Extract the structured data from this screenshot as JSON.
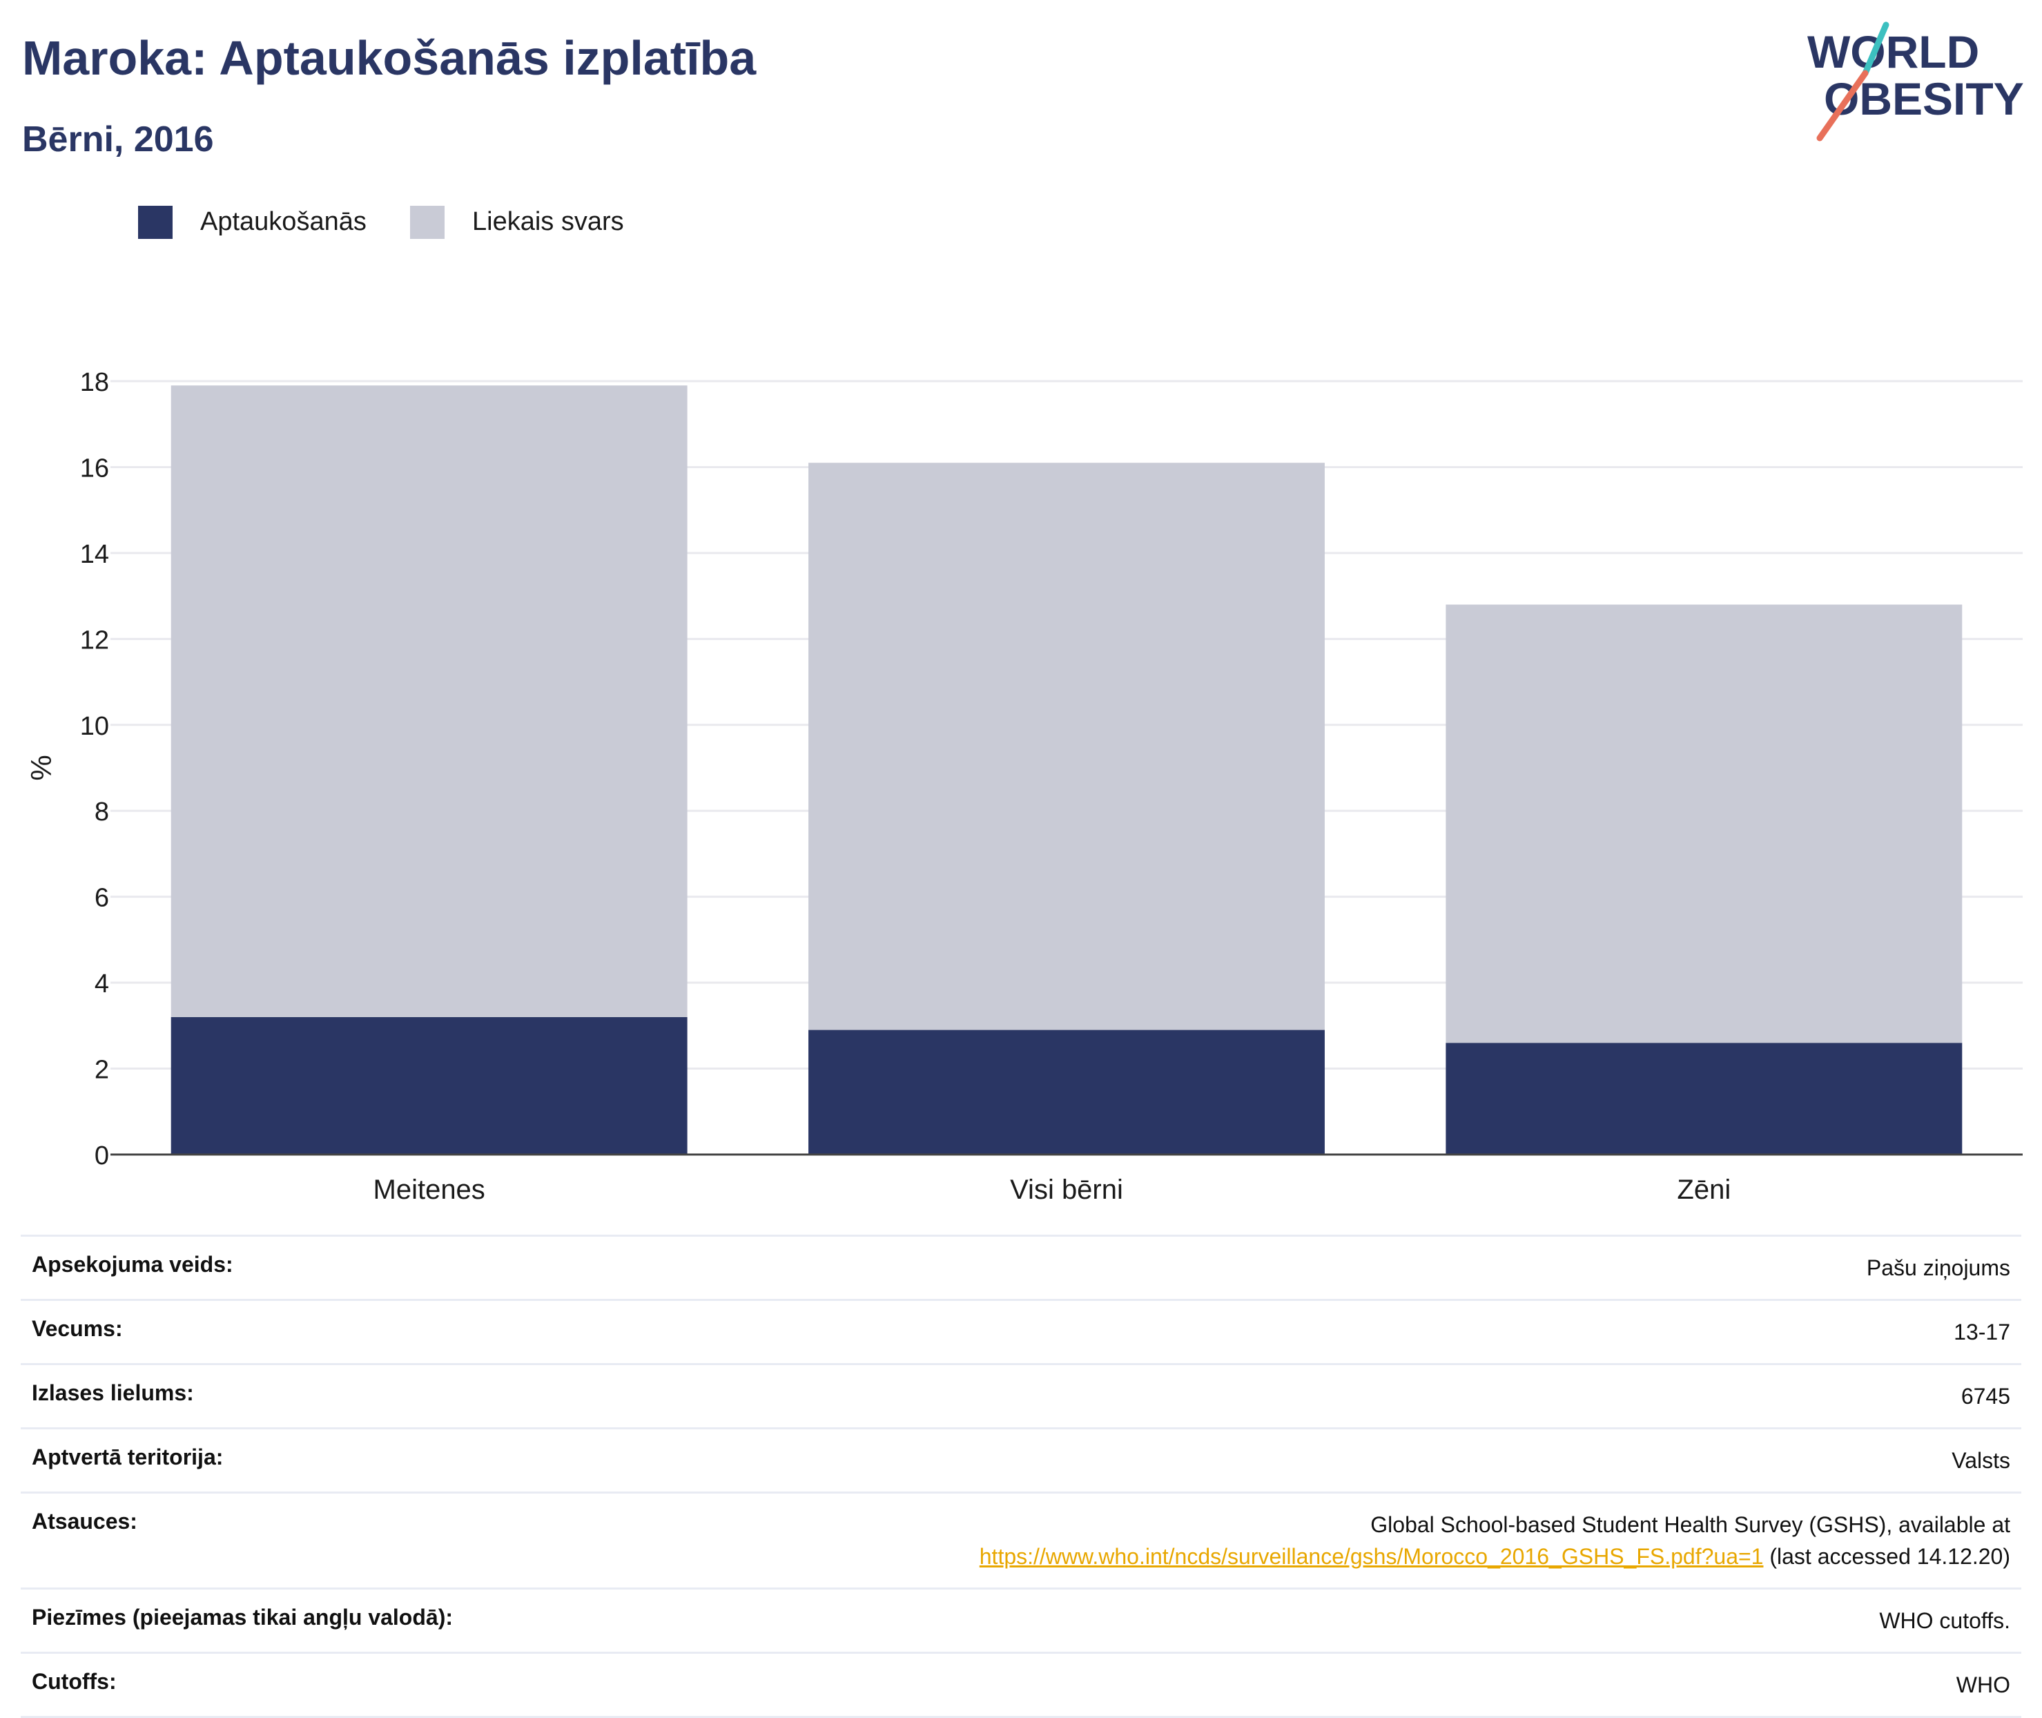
{
  "header": {
    "title": "Maroka: Aptaukošanās izplatība",
    "subtitle": "Bērni, 2016"
  },
  "logo": {
    "line1": "WORLD",
    "line2": "OBESITY"
  },
  "colors": {
    "obesity": "#2a3664",
    "overweight": "#c9cbd6",
    "title": "#2a3664",
    "link": "#e8a700",
    "logo_teal": "#3cc0c0",
    "logo_coral": "#e8705a"
  },
  "legend": [
    {
      "label": "Aptaukošanās",
      "color": "#2a3664"
    },
    {
      "label": "Liekais svars",
      "color": "#c9cbd6"
    }
  ],
  "chart_data": {
    "type": "bar",
    "stacked": true,
    "categories": [
      "Meitenes",
      "Visi bērni",
      "Zēni"
    ],
    "series": [
      {
        "name": "Aptaukošanās",
        "values": [
          3.2,
          2.9,
          2.6
        ]
      },
      {
        "name": "Liekais svars",
        "values": [
          14.7,
          13.2,
          10.2
        ]
      }
    ],
    "ylabel": "%",
    "ylim": [
      0,
      18
    ],
    "yticks": [
      0,
      2,
      4,
      6,
      8,
      10,
      12,
      14,
      16,
      18
    ],
    "grid": true,
    "legend_position": "top-left"
  },
  "meta": [
    {
      "label": "Apsekojuma veids:",
      "value": "Pašu ziņojums"
    },
    {
      "label": "Vecums:",
      "value": "13-17"
    },
    {
      "label": "Izlases lielums:",
      "value": "6745"
    },
    {
      "label": "Aptvertā teritorija:",
      "value": "Valsts"
    },
    {
      "label": "Atsauces:",
      "value_line1": "Global School-based Student Health Survey (GSHS), available at",
      "link": "https://www.who.int/ncds/surveillance/gshs/Morocco_2016_GSHS_FS.pdf?ua=1",
      "value_suffix": " (last accessed 14.12.20)"
    },
    {
      "label": "Piezīmes (pieejamas tikai angļu valodā):",
      "value": "WHO cutoffs."
    },
    {
      "label": "Cutoffs:",
      "value": "WHO"
    }
  ]
}
